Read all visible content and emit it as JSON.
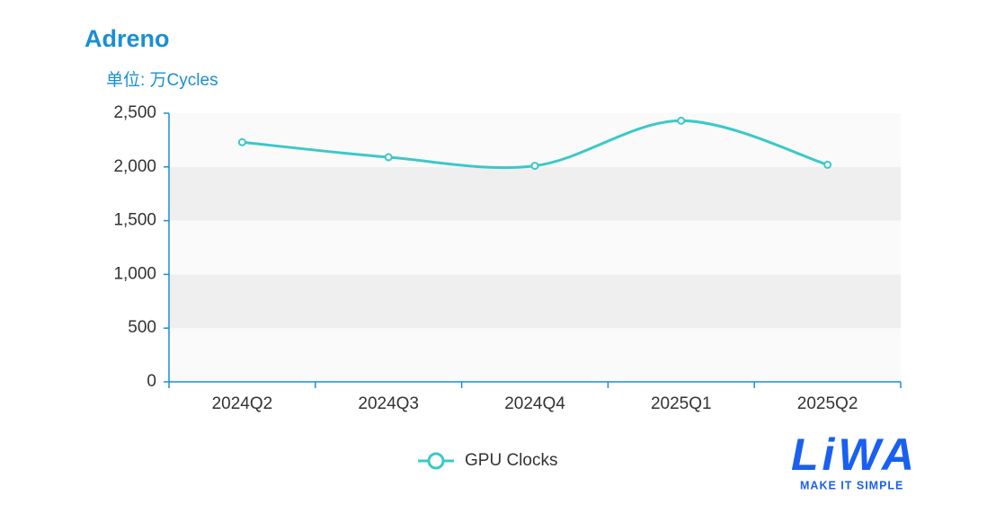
{
  "chart_data": {
    "type": "line",
    "title": "Adreno",
    "y_label": "单位: 万Cycles",
    "categories": [
      "2024Q2",
      "2024Q3",
      "2024Q4",
      "2025Q1",
      "2025Q2"
    ],
    "series": [
      {
        "name": "GPU Clocks",
        "color": "#3cc8c8",
        "values": [
          2230,
          2090,
          2010,
          2430,
          2020
        ]
      }
    ],
    "ylim": [
      0,
      2500
    ],
    "yticks": [
      0,
      500,
      {
        "value": 1000,
        "label": "1,000"
      },
      {
        "value": 1500,
        "label": "1,500"
      },
      {
        "value": 2000,
        "label": "2,000"
      },
      {
        "value": 2500,
        "label": "2,500"
      }
    ],
    "smooth": true,
    "legend": "bottom"
  },
  "logo": {
    "name": "LiWA",
    "tagline": "MAKE IT SIMPLE"
  }
}
